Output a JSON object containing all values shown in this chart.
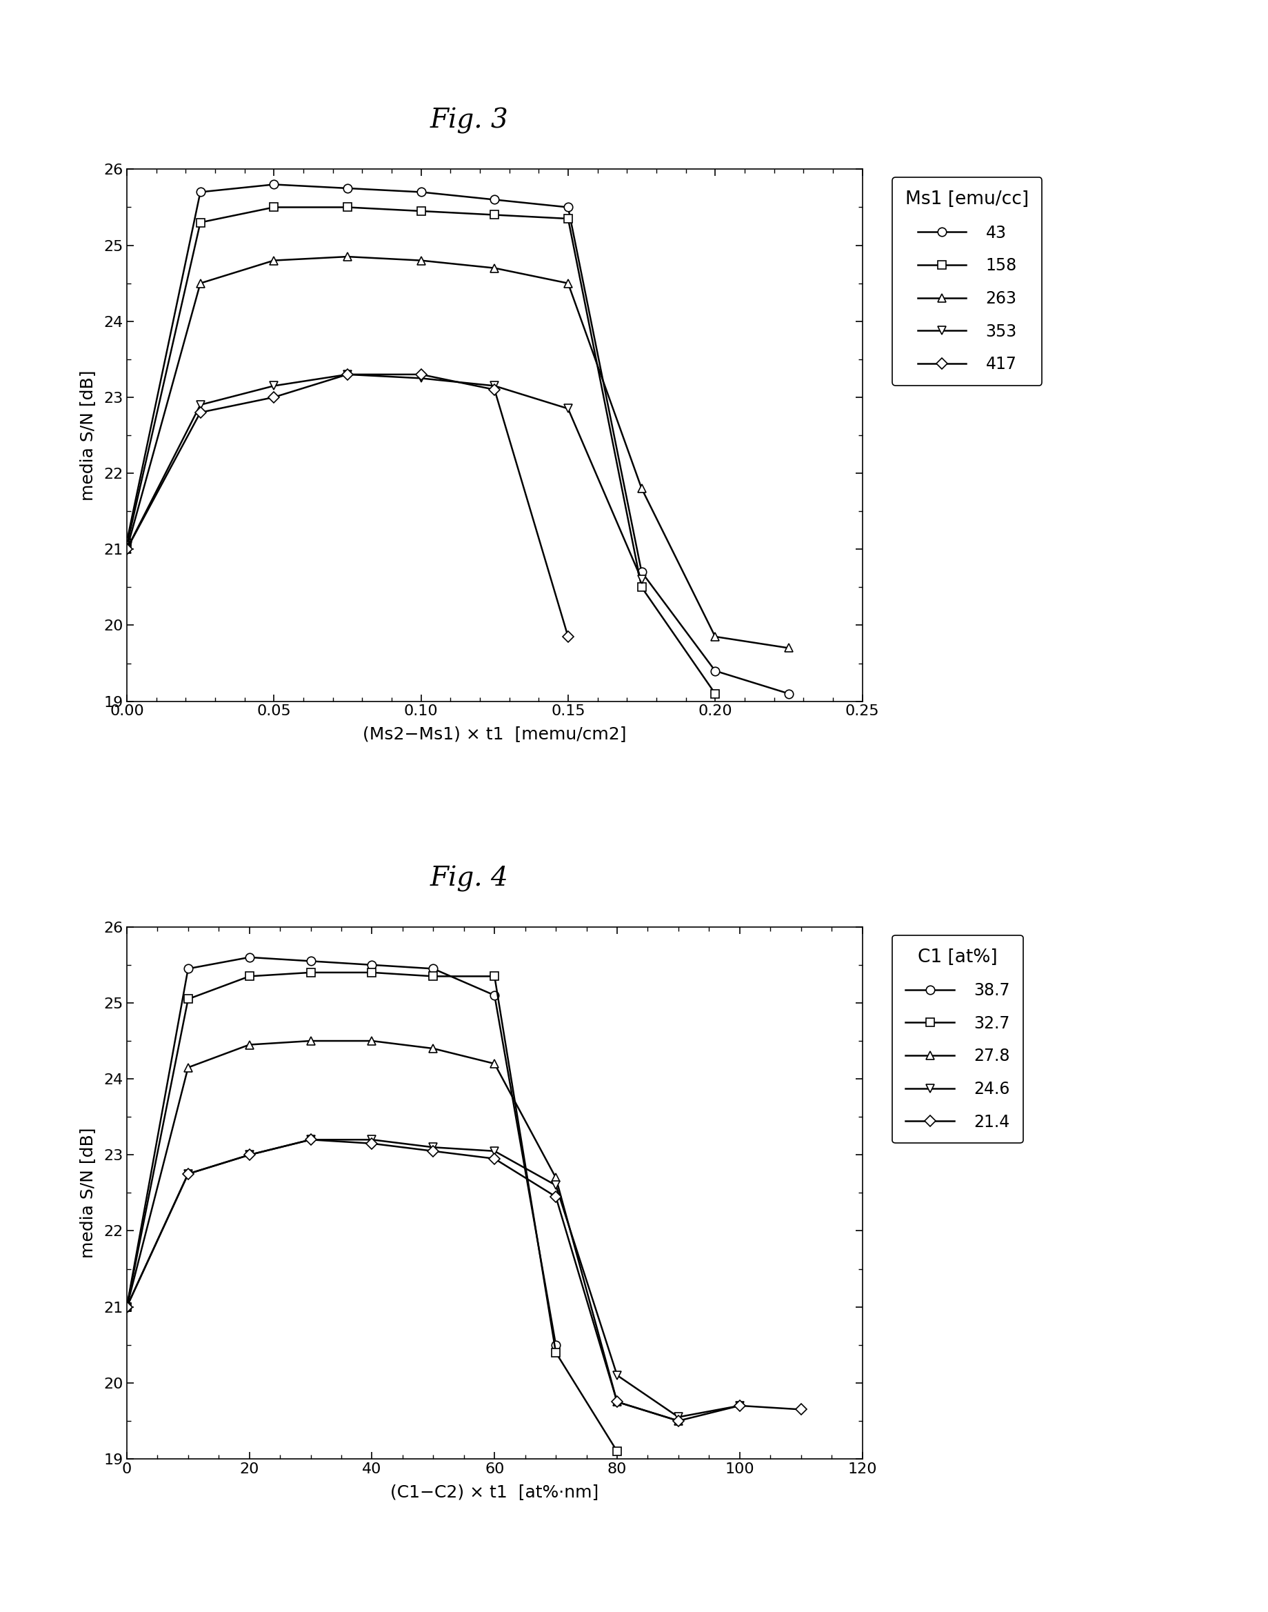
{
  "fig3": {
    "title": "Fig. 3",
    "xlabel": "(Ms2−Ms1) × t1  [memu/cm2]",
    "ylabel": "media S/N [dB]",
    "xlim": [
      0,
      0.25
    ],
    "ylim": [
      19,
      26
    ],
    "xticks": [
      0,
      0.05,
      0.1,
      0.15,
      0.2,
      0.25
    ],
    "yticks": [
      19,
      20,
      21,
      22,
      23,
      24,
      25,
      26
    ],
    "legend_title": "Ms1 [emu/cc]",
    "series": [
      {
        "label": "43",
        "marker": "o",
        "x": [
          0,
          0.025,
          0.05,
          0.075,
          0.1,
          0.125,
          0.15,
          0.175,
          0.2,
          0.225
        ],
        "y": [
          21.1,
          25.7,
          25.8,
          25.75,
          25.7,
          25.6,
          25.5,
          20.7,
          19.4,
          19.1
        ]
      },
      {
        "label": "158",
        "marker": "s",
        "x": [
          0,
          0.025,
          0.05,
          0.075,
          0.1,
          0.125,
          0.15,
          0.175,
          0.2
        ],
        "y": [
          21.05,
          25.3,
          25.5,
          25.5,
          25.45,
          25.4,
          25.35,
          20.5,
          19.1
        ]
      },
      {
        "label": "263",
        "marker": "^",
        "x": [
          0,
          0.025,
          0.05,
          0.075,
          0.1,
          0.125,
          0.15,
          0.175,
          0.2,
          0.225
        ],
        "y": [
          21.0,
          24.5,
          24.8,
          24.85,
          24.8,
          24.7,
          24.5,
          21.8,
          19.85,
          19.7
        ]
      },
      {
        "label": "353",
        "marker": "v",
        "x": [
          0,
          0.025,
          0.05,
          0.075,
          0.1,
          0.125,
          0.15,
          0.175
        ],
        "y": [
          21.0,
          22.9,
          23.15,
          23.3,
          23.25,
          23.15,
          22.85,
          20.6
        ]
      },
      {
        "label": "417",
        "marker": "D",
        "x": [
          0,
          0.025,
          0.05,
          0.075,
          0.1,
          0.125,
          0.15
        ],
        "y": [
          21.0,
          22.8,
          23.0,
          23.3,
          23.3,
          23.1,
          19.85
        ]
      }
    ]
  },
  "fig4": {
    "title": "Fig. 4",
    "xlabel": "(C1−C2) × t1  [at%·nm]",
    "ylabel": "media S/N [dB]",
    "xlim": [
      0,
      120
    ],
    "ylim": [
      19,
      26
    ],
    "xticks": [
      0,
      20,
      40,
      60,
      80,
      100,
      120
    ],
    "yticks": [
      19,
      20,
      21,
      22,
      23,
      24,
      25,
      26
    ],
    "legend_title": "C1 [at%]",
    "series": [
      {
        "label": "38.7",
        "marker": "o",
        "x": [
          0,
          10,
          20,
          30,
          40,
          50,
          60,
          70
        ],
        "y": [
          21.0,
          25.45,
          25.6,
          25.55,
          25.5,
          25.45,
          25.1,
          20.5
        ]
      },
      {
        "label": "32.7",
        "marker": "s",
        "x": [
          0,
          10,
          20,
          30,
          40,
          50,
          60,
          70,
          80
        ],
        "y": [
          21.0,
          25.05,
          25.35,
          25.4,
          25.4,
          25.35,
          25.35,
          20.4,
          19.1
        ]
      },
      {
        "label": "27.8",
        "marker": "^",
        "x": [
          0,
          10,
          20,
          30,
          40,
          50,
          60,
          70,
          80,
          90
        ],
        "y": [
          21.0,
          24.15,
          24.45,
          24.5,
          24.5,
          24.4,
          24.2,
          22.7,
          19.75,
          19.5
        ]
      },
      {
        "label": "24.6",
        "marker": "v",
        "x": [
          0,
          10,
          20,
          30,
          40,
          50,
          60,
          70,
          80,
          90,
          100
        ],
        "y": [
          21.0,
          22.75,
          23.0,
          23.2,
          23.2,
          23.1,
          23.05,
          22.6,
          20.1,
          19.55,
          19.7
        ]
      },
      {
        "label": "21.4",
        "marker": "D",
        "x": [
          0,
          10,
          20,
          30,
          40,
          50,
          60,
          70,
          80,
          90,
          100,
          110
        ],
        "y": [
          21.0,
          22.75,
          23.0,
          23.2,
          23.15,
          23.05,
          22.95,
          22.45,
          19.75,
          19.5,
          19.7,
          19.65
        ]
      }
    ]
  },
  "title_fontsize": 28,
  "label_fontsize": 18,
  "tick_fontsize": 16,
  "legend_fontsize": 17,
  "legend_title_fontsize": 19,
  "line_width": 1.8,
  "marker_size": 9
}
